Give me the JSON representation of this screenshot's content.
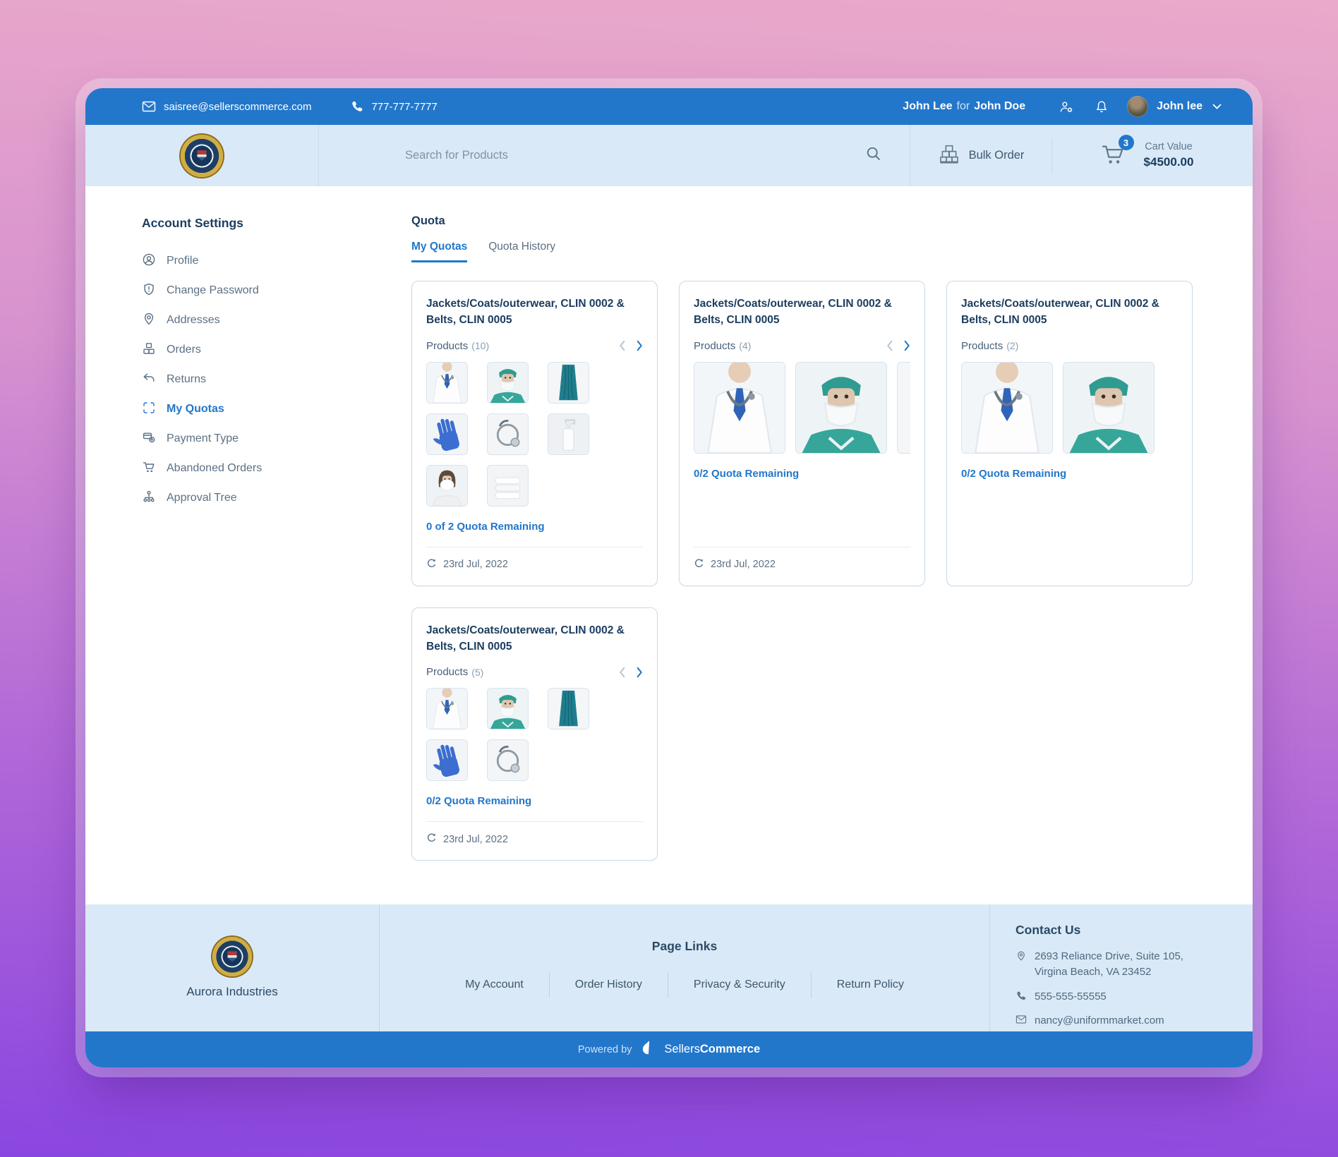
{
  "topbar": {
    "email": "saisree@sellerscommerce.com",
    "phone": "777-777-7777",
    "impersonation": {
      "user": "John Lee",
      "separator": "for",
      "customer": "John Doe"
    },
    "username": "John lee"
  },
  "header": {
    "search_placeholder": "Search for Products",
    "bulk_order_label": "Bulk Order",
    "cart_badge": "3",
    "cart_value_label": "Cart Value",
    "cart_value": "$4500.00"
  },
  "sidebar": {
    "title": "Account Settings",
    "items": [
      {
        "label": "Profile",
        "icon": "profile-icon",
        "active": false
      },
      {
        "label": "Change Password",
        "icon": "password-shield-icon",
        "active": false
      },
      {
        "label": "Addresses",
        "icon": "location-pin-icon",
        "active": false
      },
      {
        "label": "Orders",
        "icon": "boxes-icon",
        "active": false
      },
      {
        "label": "Returns",
        "icon": "return-arrow-icon",
        "active": false
      },
      {
        "label": "My Quotas",
        "icon": "quota-brackets-icon",
        "active": true
      },
      {
        "label": "Payment Type",
        "icon": "payment-icon",
        "active": false
      },
      {
        "label": "Abandoned Orders",
        "icon": "cart-icon",
        "active": false
      },
      {
        "label": "Approval Tree",
        "icon": "org-tree-icon",
        "active": false
      }
    ]
  },
  "quota": {
    "heading": "Quota",
    "tabs": [
      {
        "label": "My Quotas",
        "active": true
      },
      {
        "label": "Quota History",
        "active": false
      }
    ],
    "cards": [
      {
        "title": "Jackets/Coats/outerwear, CLIN 0002 & Belts, CLIN 0005",
        "products_label": "Products",
        "count": "(10)",
        "size": "small",
        "arrows": true,
        "thumbs": [
          "doctor-coat",
          "surgeon-mask",
          "teal-scrubs",
          "blue-glove",
          "stethoscope",
          "soap-dispenser",
          "masked-nurse",
          "folded-towels"
        ],
        "quota_text": "0 of 2 Quota Remaining",
        "date": "23rd Jul, 2022"
      },
      {
        "title": "Jackets/Coats/outerwear, CLIN 0002 & Belts, CLIN 0005",
        "products_label": "Products",
        "count": "(4)",
        "size": "large",
        "arrows": true,
        "thumbs": [
          "doctor-coat",
          "surgeon-mask",
          "teal-scrubs"
        ],
        "quota_text": "0/2 Quota Remaining",
        "date": "23rd Jul, 2022"
      },
      {
        "title": "Jackets/Coats/outerwear, CLIN 0002 & Belts, CLIN 0005",
        "products_label": "Products",
        "count": "(2)",
        "size": "large",
        "arrows": false,
        "thumbs": [
          "doctor-coat",
          "surgeon-mask"
        ],
        "quota_text": "0/2 Quota Remaining",
        "date": null
      },
      {
        "title": "Jackets/Coats/outerwear, CLIN 0002 & Belts, CLIN 0005",
        "products_label": "Products",
        "count": "(5)",
        "size": "small",
        "arrows": true,
        "thumbs": [
          "doctor-coat",
          "surgeon-mask",
          "teal-scrubs",
          "blue-glove",
          "stethoscope"
        ],
        "quota_text": "0/2 Quota Remaining",
        "date": "23rd Jul, 2022"
      }
    ]
  },
  "footer": {
    "company": "Aurora Industries",
    "page_links_title": "Page Links",
    "links": [
      "My Account",
      "Order History",
      "Privacy & Security",
      "Return Policy"
    ],
    "contact": {
      "title": "Contact Us",
      "address_line1": "2693 Reliance Drive, Suite 105,",
      "address_line2": "Virgina Beach, VA 23452",
      "phone": "555-555-55555",
      "email": "nancy@uniformmarket.com"
    }
  },
  "powered": {
    "label": "Powered by",
    "brand_light": "Sellers",
    "brand_bold": "Commerce"
  },
  "colors": {
    "accent": "#2277cb",
    "band": "#d9e9f7",
    "navy": "#1c3d60",
    "bg_gradient_top": "#eaa9ca",
    "bg_gradient_bottom": "#8a46e0"
  }
}
